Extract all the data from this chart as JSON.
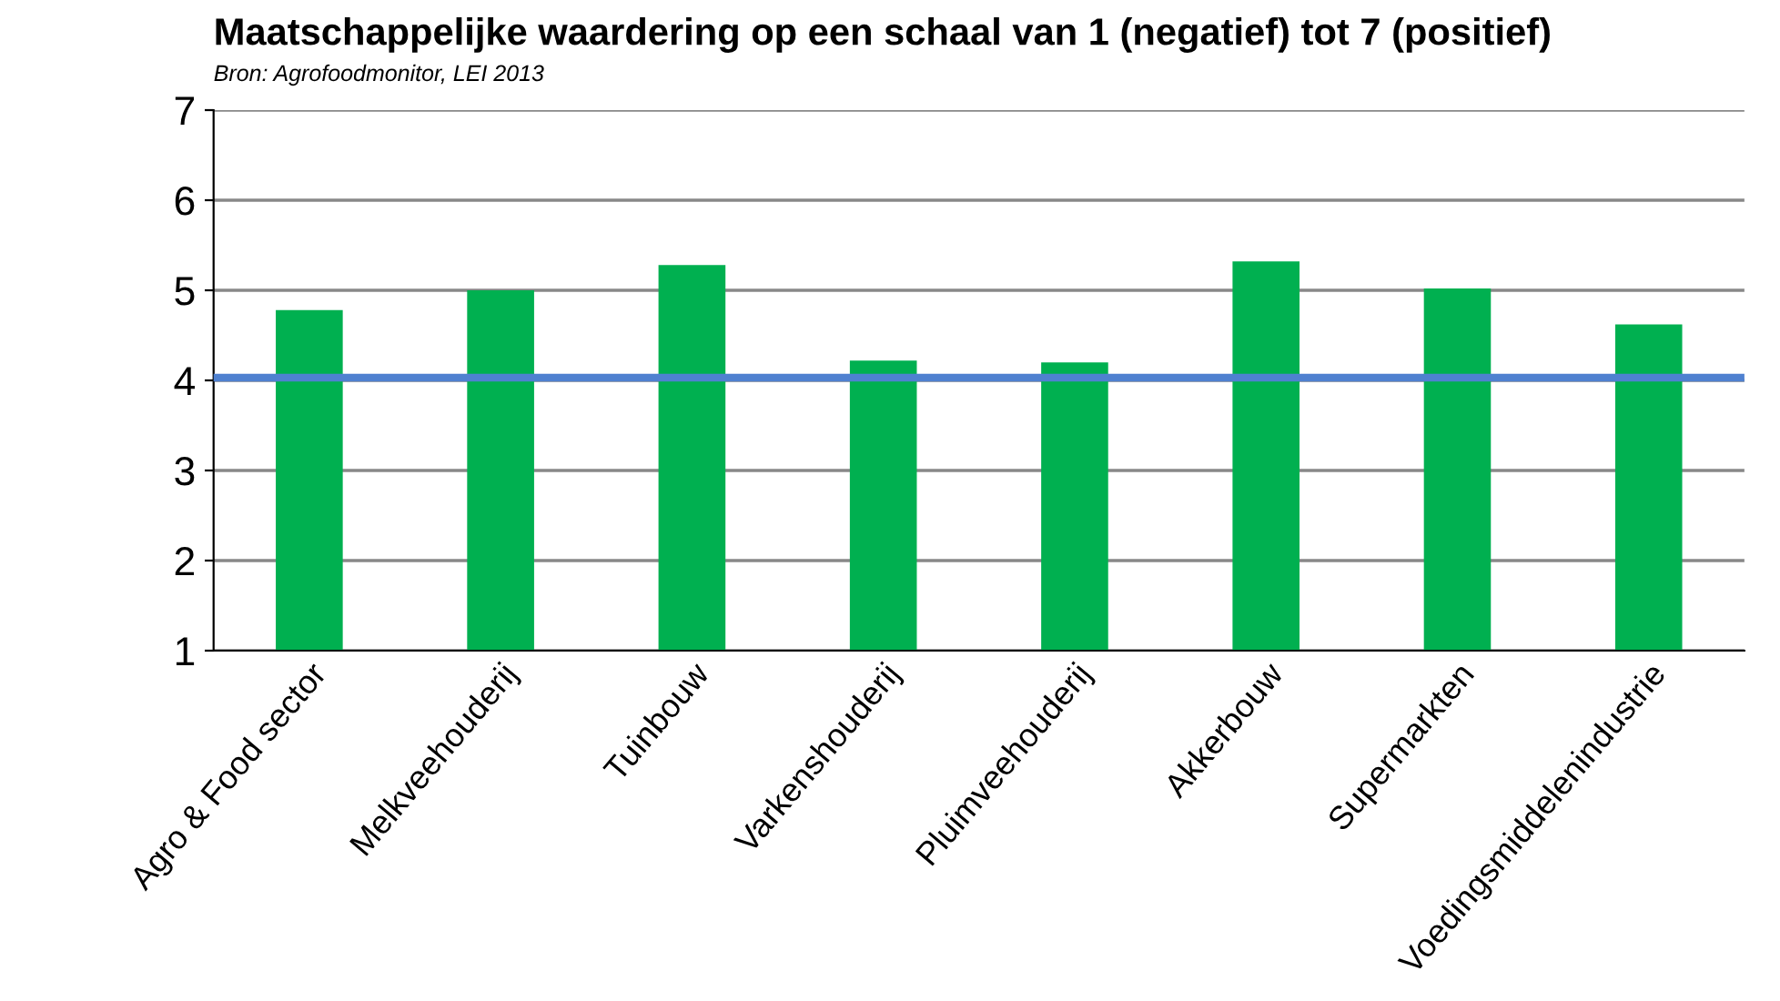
{
  "chart_data": {
    "type": "bar",
    "title": "Maatschappelijke waardering op een schaal van 1 (negatief) tot 7 (positief)",
    "subtitle": "Bron: Agrofoodmonitor, LEI 2013",
    "categories": [
      "Agro & Food sector",
      "Melkveehouderij",
      "Tuinbouw",
      "Varkenshouderij",
      "Pluimveehouderij",
      "Akkerbouw",
      "Supermarkten",
      "Voedingsmiddelenindustrie"
    ],
    "values": [
      4.78,
      5.0,
      5.28,
      4.22,
      4.2,
      5.32,
      5.02,
      4.62
    ],
    "color": "#00b050",
    "ylim": [
      1,
      7
    ],
    "yticks": [
      1,
      2,
      3,
      4,
      5,
      6,
      7
    ],
    "grid": "y",
    "legend": false,
    "ref_lines": [
      {
        "axis": "y",
        "value": 4.03,
        "color": "#4f81d0"
      }
    ]
  }
}
